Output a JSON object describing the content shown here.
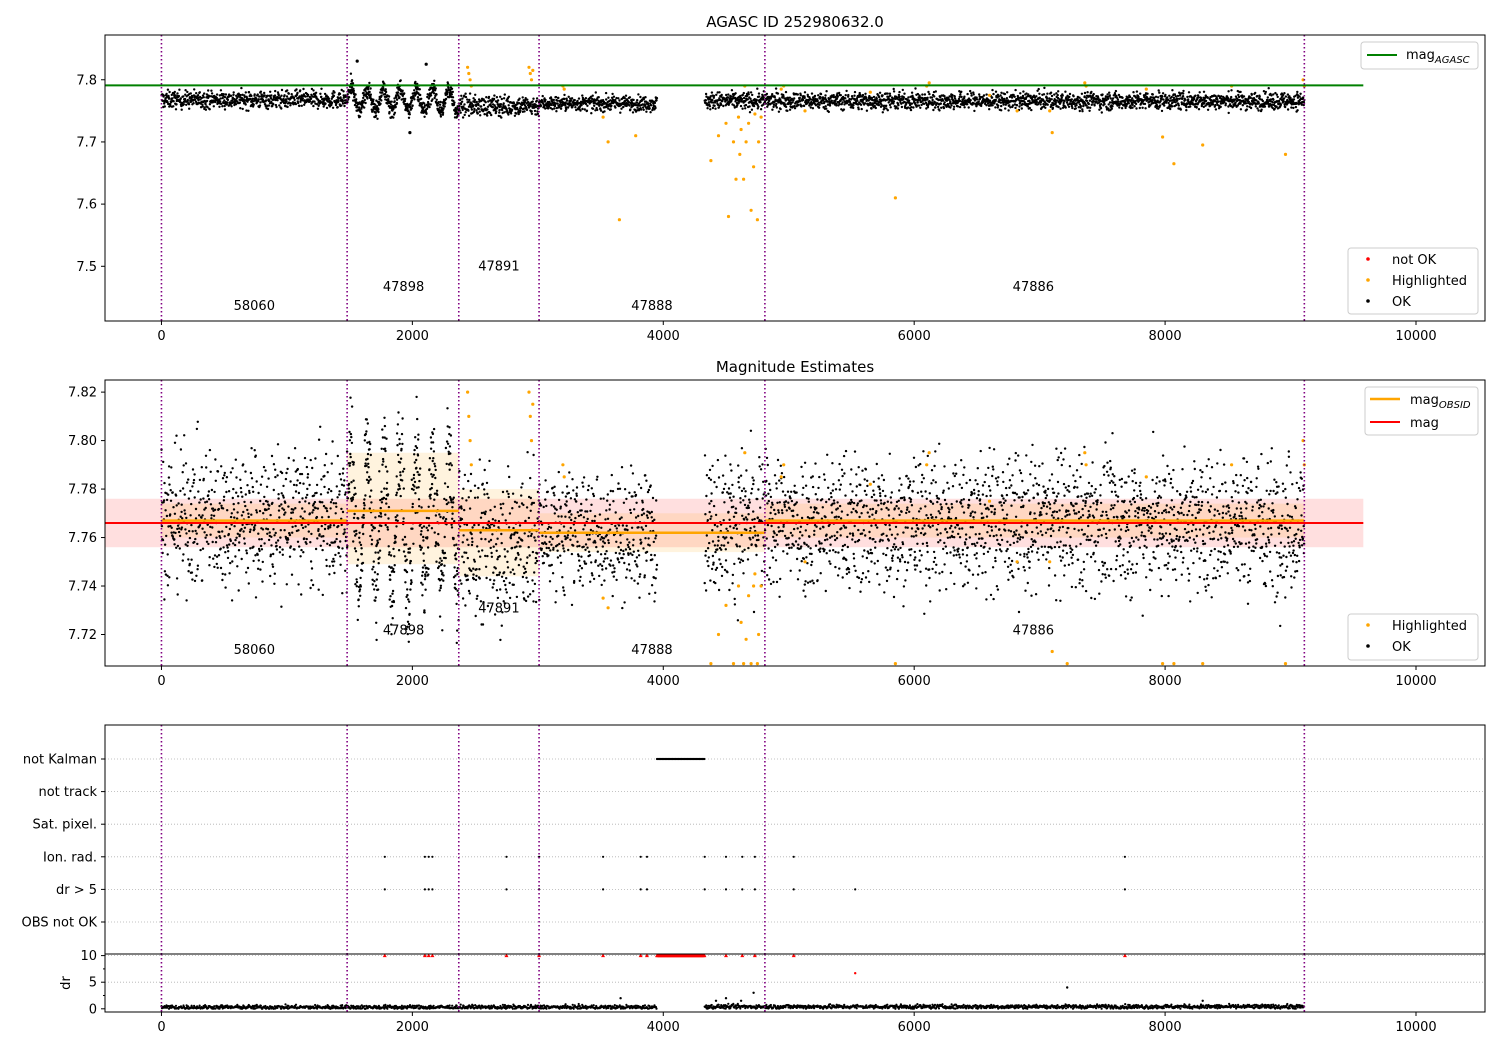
{
  "figure_title": "AGASC ID 252980632.0",
  "colors": {
    "ok": "#000000",
    "highlighted": "#ffa500",
    "not_ok": "#ff0000",
    "agasc": "#008000",
    "mag_line": "#ff0000",
    "mag_band": "#ffc0c0",
    "obsid": "#ffa500",
    "vline": "#800080"
  },
  "chart_data": [
    {
      "type": "scatter",
      "title": "AGASC ID 252980632.0",
      "xlim": [
        -450,
        10550
      ],
      "ylim": [
        7.412,
        7.872
      ],
      "xticks": [
        0,
        2000,
        4000,
        6000,
        8000,
        10000
      ],
      "yticks": [
        7.5,
        7.6,
        7.7,
        7.8
      ],
      "grid": false,
      "legend_upper": {
        "position": "top-right",
        "entries": [
          "mag_AGASC"
        ]
      },
      "legend_lower": {
        "position": "bottom-right",
        "entries": [
          "not OK",
          "Highlighted",
          "OK"
        ]
      },
      "mag_agasc": 7.791,
      "agasc_xrange": [
        -450,
        9580
      ],
      "obsid_boundaries": [
        0,
        1480,
        2370,
        3010,
        4810,
        9110
      ],
      "obsid_labels": [
        {
          "x": 740,
          "y": 7.43,
          "text": "58060"
        },
        {
          "x": 1930,
          "y": 7.46,
          "text": "47898"
        },
        {
          "x": 2690,
          "y": 7.493,
          "text": "47891"
        },
        {
          "x": 3910,
          "y": 7.43,
          "text": "47888"
        },
        {
          "x": 6950,
          "y": 7.46,
          "text": "47886"
        }
      ],
      "series": [
        {
          "name": "OK",
          "color": "#000000",
          "style": "band",
          "segments": [
            [
              0,
              1480,
              7.768,
              0.007
            ],
            [
              2370,
              3010,
              7.758,
              0.008
            ],
            [
              3010,
              3950,
              7.762,
              0.006
            ],
            [
              4330,
              9110,
              7.766,
              0.007
            ]
          ]
        },
        {
          "name": "OK",
          "color": "#000000",
          "style": "oscillation",
          "segments": [
            [
              1480,
              2370,
              7.767,
              0.04
            ]
          ]
        },
        {
          "name": "Highlighted",
          "color": "#ffa500",
          "style": "points",
          "points": [
            [
              2440,
              7.82
            ],
            [
              2450,
              7.81
            ],
            [
              2460,
              7.8
            ],
            [
              2470,
              7.79
            ],
            [
              2930,
              7.82
            ],
            [
              2940,
              7.81
            ],
            [
              2950,
              7.8
            ],
            [
              2960,
              7.815
            ],
            [
              3200,
              7.79
            ],
            [
              3210,
              7.785
            ],
            [
              3520,
              7.74
            ],
            [
              3560,
              7.7
            ],
            [
              3650,
              7.575
            ],
            [
              3780,
              7.71
            ],
            [
              4380,
              7.67
            ],
            [
              4440,
              7.71
            ],
            [
              4500,
              7.73
            ],
            [
              4520,
              7.58
            ],
            [
              4560,
              7.7
            ],
            [
              4580,
              7.64
            ],
            [
              4600,
              7.74
            ],
            [
              4610,
              7.68
            ],
            [
              4620,
              7.72
            ],
            [
              4640,
              7.64
            ],
            [
              4650,
              7.79
            ],
            [
              4660,
              7.7
            ],
            [
              4680,
              7.73
            ],
            [
              4700,
              7.59
            ],
            [
              4720,
              7.66
            ],
            [
              4730,
              7.745
            ],
            [
              4750,
              7.575
            ],
            [
              4760,
              7.7
            ],
            [
              4780,
              7.74
            ],
            [
              4940,
              7.785
            ],
            [
              4960,
              7.79
            ],
            [
              5130,
              7.75
            ],
            [
              5650,
              7.78
            ],
            [
              5850,
              7.61
            ],
            [
              6100,
              7.79
            ],
            [
              6120,
              7.795
            ],
            [
              6600,
              7.775
            ],
            [
              6820,
              7.75
            ],
            [
              7080,
              7.75
            ],
            [
              7100,
              7.715
            ],
            [
              7360,
              7.795
            ],
            [
              7370,
              7.79
            ],
            [
              7850,
              7.785
            ],
            [
              7980,
              7.708
            ],
            [
              8070,
              7.665
            ],
            [
              8300,
              7.695
            ],
            [
              8530,
              7.79
            ],
            [
              8960,
              7.68
            ],
            [
              9100,
              7.8
            ],
            [
              9110,
              7.79
            ]
          ]
        },
        {
          "name": "OK",
          "color": "#000000",
          "style": "points",
          "points": [
            [
              1980,
              7.715
            ],
            [
              1560,
              7.83
            ],
            [
              2110,
              7.825
            ]
          ]
        }
      ]
    },
    {
      "type": "scatter",
      "title": "Magnitude Estimates",
      "xlim": [
        -450,
        10550
      ],
      "ylim": [
        7.707,
        7.825
      ],
      "xticks": [
        0,
        2000,
        4000,
        6000,
        8000,
        10000
      ],
      "yticks": [
        7.72,
        7.74,
        7.76,
        7.78,
        7.8,
        7.82
      ],
      "grid": false,
      "legend_upper": {
        "position": "top-right",
        "entries": [
          "mag_OBSID",
          "mag"
        ]
      },
      "legend_lower": {
        "position": "bottom-right",
        "entries": [
          "Highlighted",
          "OK"
        ]
      },
      "mag": 7.766,
      "mag_band": [
        7.756,
        7.776
      ],
      "mag_xrange": [
        -450,
        9580
      ],
      "obsid_mags": [
        {
          "x0": 0,
          "x1": 1480,
          "mag": 7.767,
          "band": [
            7.76,
            7.774
          ]
        },
        {
          "x0": 1480,
          "x1": 2370,
          "mag": 7.771,
          "band": [
            7.749,
            7.795
          ]
        },
        {
          "x0": 2370,
          "x1": 3010,
          "mag": 7.763,
          "band": [
            7.744,
            7.78
          ]
        },
        {
          "x0": 3010,
          "x1": 4810,
          "mag": 7.762,
          "band": [
            7.754,
            7.77
          ]
        },
        {
          "x0": 4810,
          "x1": 9110,
          "mag": 7.767,
          "band": [
            7.76,
            7.774
          ]
        }
      ],
      "obsid_boundaries": [
        0,
        1480,
        2370,
        3010,
        4810,
        9110
      ],
      "obsid_labels": [
        {
          "x": 740,
          "y": 7.712,
          "text": "58060"
        },
        {
          "x": 1930,
          "y": 7.72,
          "text": "47898"
        },
        {
          "x": 2690,
          "y": 7.729,
          "text": "47891"
        },
        {
          "x": 3910,
          "y": 7.712,
          "text": "47888"
        },
        {
          "x": 6950,
          "y": 7.72,
          "text": "47886"
        }
      ],
      "series": [
        {
          "name": "OK",
          "color": "#000000",
          "style": "band",
          "segments": [
            [
              0,
              1480,
              7.768,
              0.014
            ],
            [
              2370,
              3010,
              7.758,
              0.016
            ],
            [
              3010,
              3950,
              7.762,
              0.012
            ],
            [
              4330,
              9110,
              7.766,
              0.014
            ]
          ]
        },
        {
          "name": "OK",
          "color": "#000000",
          "style": "oscillation",
          "segments": [
            [
              1480,
              2370,
              7.767,
              0.06
            ]
          ]
        },
        {
          "name": "Highlighted",
          "color": "#ffa500",
          "style": "points",
          "points": [
            [
              2440,
              7.82
            ],
            [
              2450,
              7.81
            ],
            [
              2460,
              7.8
            ],
            [
              2470,
              7.79
            ],
            [
              2930,
              7.82
            ],
            [
              2940,
              7.81
            ],
            [
              2950,
              7.8
            ],
            [
              2960,
              7.815
            ],
            [
              3200,
              7.79
            ],
            [
              3210,
              7.785
            ],
            [
              3520,
              7.735
            ],
            [
              3560,
              7.731
            ],
            [
              4380,
              7.708
            ],
            [
              4440,
              7.72
            ],
            [
              4500,
              7.732
            ],
            [
              4560,
              7.708
            ],
            [
              4600,
              7.74
            ],
            [
              4620,
              7.725
            ],
            [
              4640,
              7.708
            ],
            [
              4650,
              7.795
            ],
            [
              4660,
              7.718
            ],
            [
              4680,
              7.736
            ],
            [
              4700,
              7.708
            ],
            [
              4720,
              7.74
            ],
            [
              4730,
              7.745
            ],
            [
              4750,
              7.708
            ],
            [
              4760,
              7.72
            ],
            [
              4780,
              7.74
            ],
            [
              4940,
              7.785
            ],
            [
              4960,
              7.79
            ],
            [
              5130,
              7.75
            ],
            [
              5650,
              7.782
            ],
            [
              5850,
              7.708
            ],
            [
              6100,
              7.79
            ],
            [
              6120,
              7.795
            ],
            [
              6600,
              7.775
            ],
            [
              6820,
              7.75
            ],
            [
              7080,
              7.75
            ],
            [
              7100,
              7.713
            ],
            [
              7220,
              7.708
            ],
            [
              7360,
              7.795
            ],
            [
              7370,
              7.79
            ],
            [
              7850,
              7.785
            ],
            [
              7980,
              7.708
            ],
            [
              8070,
              7.708
            ],
            [
              8300,
              7.708
            ],
            [
              8530,
              7.79
            ],
            [
              8960,
              7.708
            ],
            [
              9100,
              7.8
            ],
            [
              9110,
              7.79
            ]
          ]
        }
      ]
    },
    {
      "type": "scatter",
      "title": "",
      "xlim": [
        -450,
        10550
      ],
      "xticks": [
        0,
        2000,
        4000,
        6000,
        8000,
        10000
      ],
      "flag_categories": [
        "not Kalman",
        "not track",
        "Sat. pixel.",
        "Ion. rad.",
        "dr > 5",
        "OBS not OK"
      ],
      "flag_grid": true,
      "obsid_boundaries": [
        0,
        1480,
        2370,
        3010,
        4810,
        9110
      ],
      "flags": {
        "not Kalman": {
          "ranges": [
            [
              3950,
              4330
            ]
          ],
          "x": []
        },
        "not track": {
          "ranges": [],
          "x": []
        },
        "Sat. pixel.": {
          "ranges": [],
          "x": []
        },
        "Ion. rad.": {
          "ranges": [],
          "x": [
            1780,
            2100,
            2130,
            2160,
            2750,
            3010,
            3520,
            3820,
            3870,
            4330,
            4500,
            4630,
            4730,
            5040,
            7680
          ]
        },
        "dr > 5": {
          "ranges": [],
          "x": [
            1780,
            2100,
            2130,
            2160,
            2750,
            3010,
            3520,
            3820,
            3870,
            4330,
            4500,
            4630,
            4730,
            5040,
            5530,
            7680
          ]
        },
        "OBS not OK": {
          "ranges": [],
          "x": []
        }
      },
      "dr": {
        "ylabel": "dr",
        "ylim": [
          -0.6,
          10.3
        ],
        "yticks": [
          0,
          5,
          10
        ],
        "clip": 10,
        "baseline_segments": [
          [
            0,
            3950,
            0.3
          ],
          [
            4330,
            9110,
            0.4
          ]
        ],
        "clipped_x": [
          1780,
          2100,
          2130,
          2160,
          2750,
          3010,
          3520,
          3820,
          3870,
          4500,
          4630,
          4730,
          5040,
          7680
        ],
        "clipped_ranges": [
          [
            3950,
            4330
          ]
        ],
        "outliers": [
          [
            3660,
            2.0
          ],
          [
            4420,
            1.5
          ],
          [
            4500,
            2.0
          ],
          [
            4620,
            1.5
          ],
          [
            4720,
            3.0
          ],
          [
            5530,
            6.7
          ],
          [
            7220,
            4.0
          ],
          [
            8300,
            1.5
          ]
        ]
      }
    }
  ]
}
